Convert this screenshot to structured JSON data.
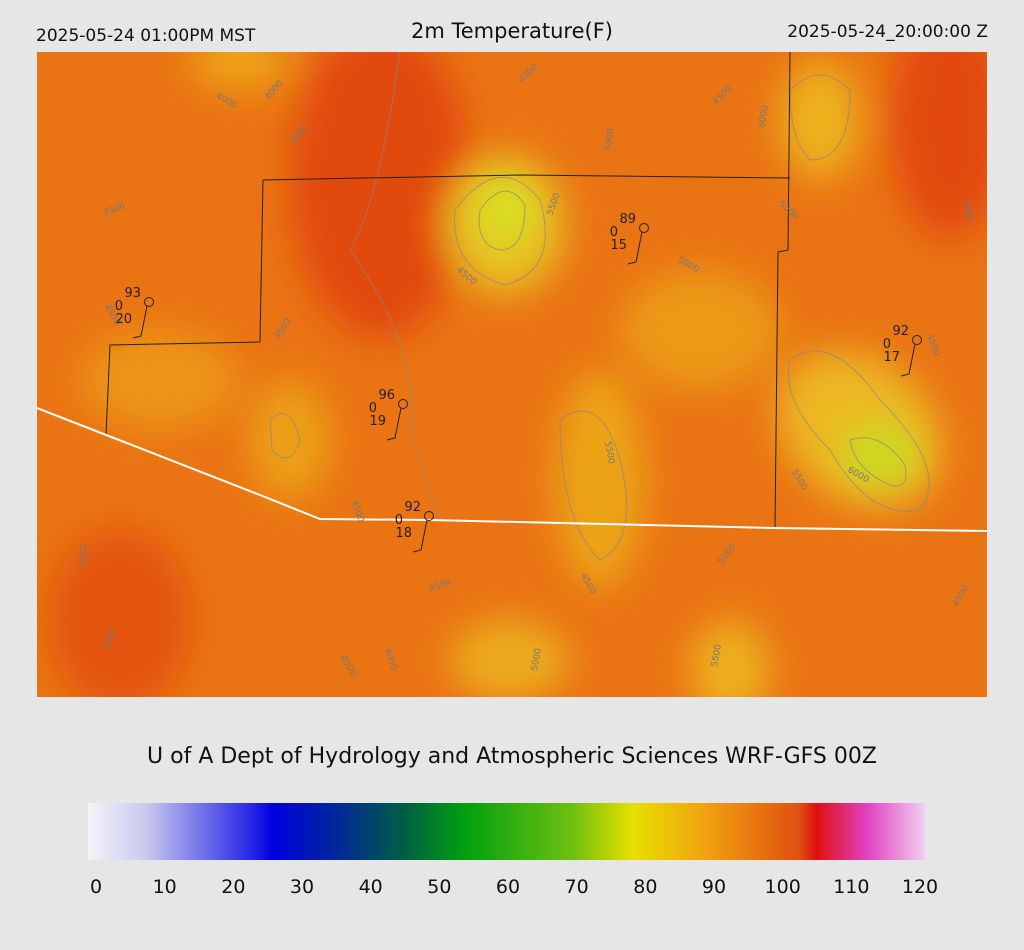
{
  "header": {
    "local_time": "2025-05-24 01:00PM MST",
    "title": "2m Temperature(F)",
    "utc_time": "2025-05-24_20:00:00 Z"
  },
  "stations": [
    {
      "temp": 93,
      "wind": 0,
      "dewpoint": 20
    },
    {
      "temp": 89,
      "wind": 0,
      "dewpoint": 15
    },
    {
      "temp": 96,
      "wind": 0,
      "dewpoint": 19
    },
    {
      "temp": 92,
      "wind": 0,
      "dewpoint": 18
    },
    {
      "temp": 92,
      "wind": 0,
      "dewpoint": 17
    }
  ],
  "contour_labels": [
    "4000",
    "4000",
    "3500",
    "3500",
    "4000",
    "4500",
    "5000",
    "5000",
    "5500",
    "5000",
    "4000",
    "5000",
    "4500",
    "4500",
    "4500",
    "4500",
    "5500",
    "6000",
    "5500",
    "4500",
    "3500",
    "5000",
    "4500",
    "4500",
    "4500",
    "3000",
    "4000",
    "4500",
    "5000",
    "5500"
  ],
  "footer": "U of A Dept of Hydrology and Atmospheric Sciences WRF-GFS 00Z",
  "colorbar": {
    "ticks": [
      0,
      10,
      20,
      30,
      40,
      50,
      60,
      70,
      80,
      90,
      100,
      110,
      120
    ]
  }
}
